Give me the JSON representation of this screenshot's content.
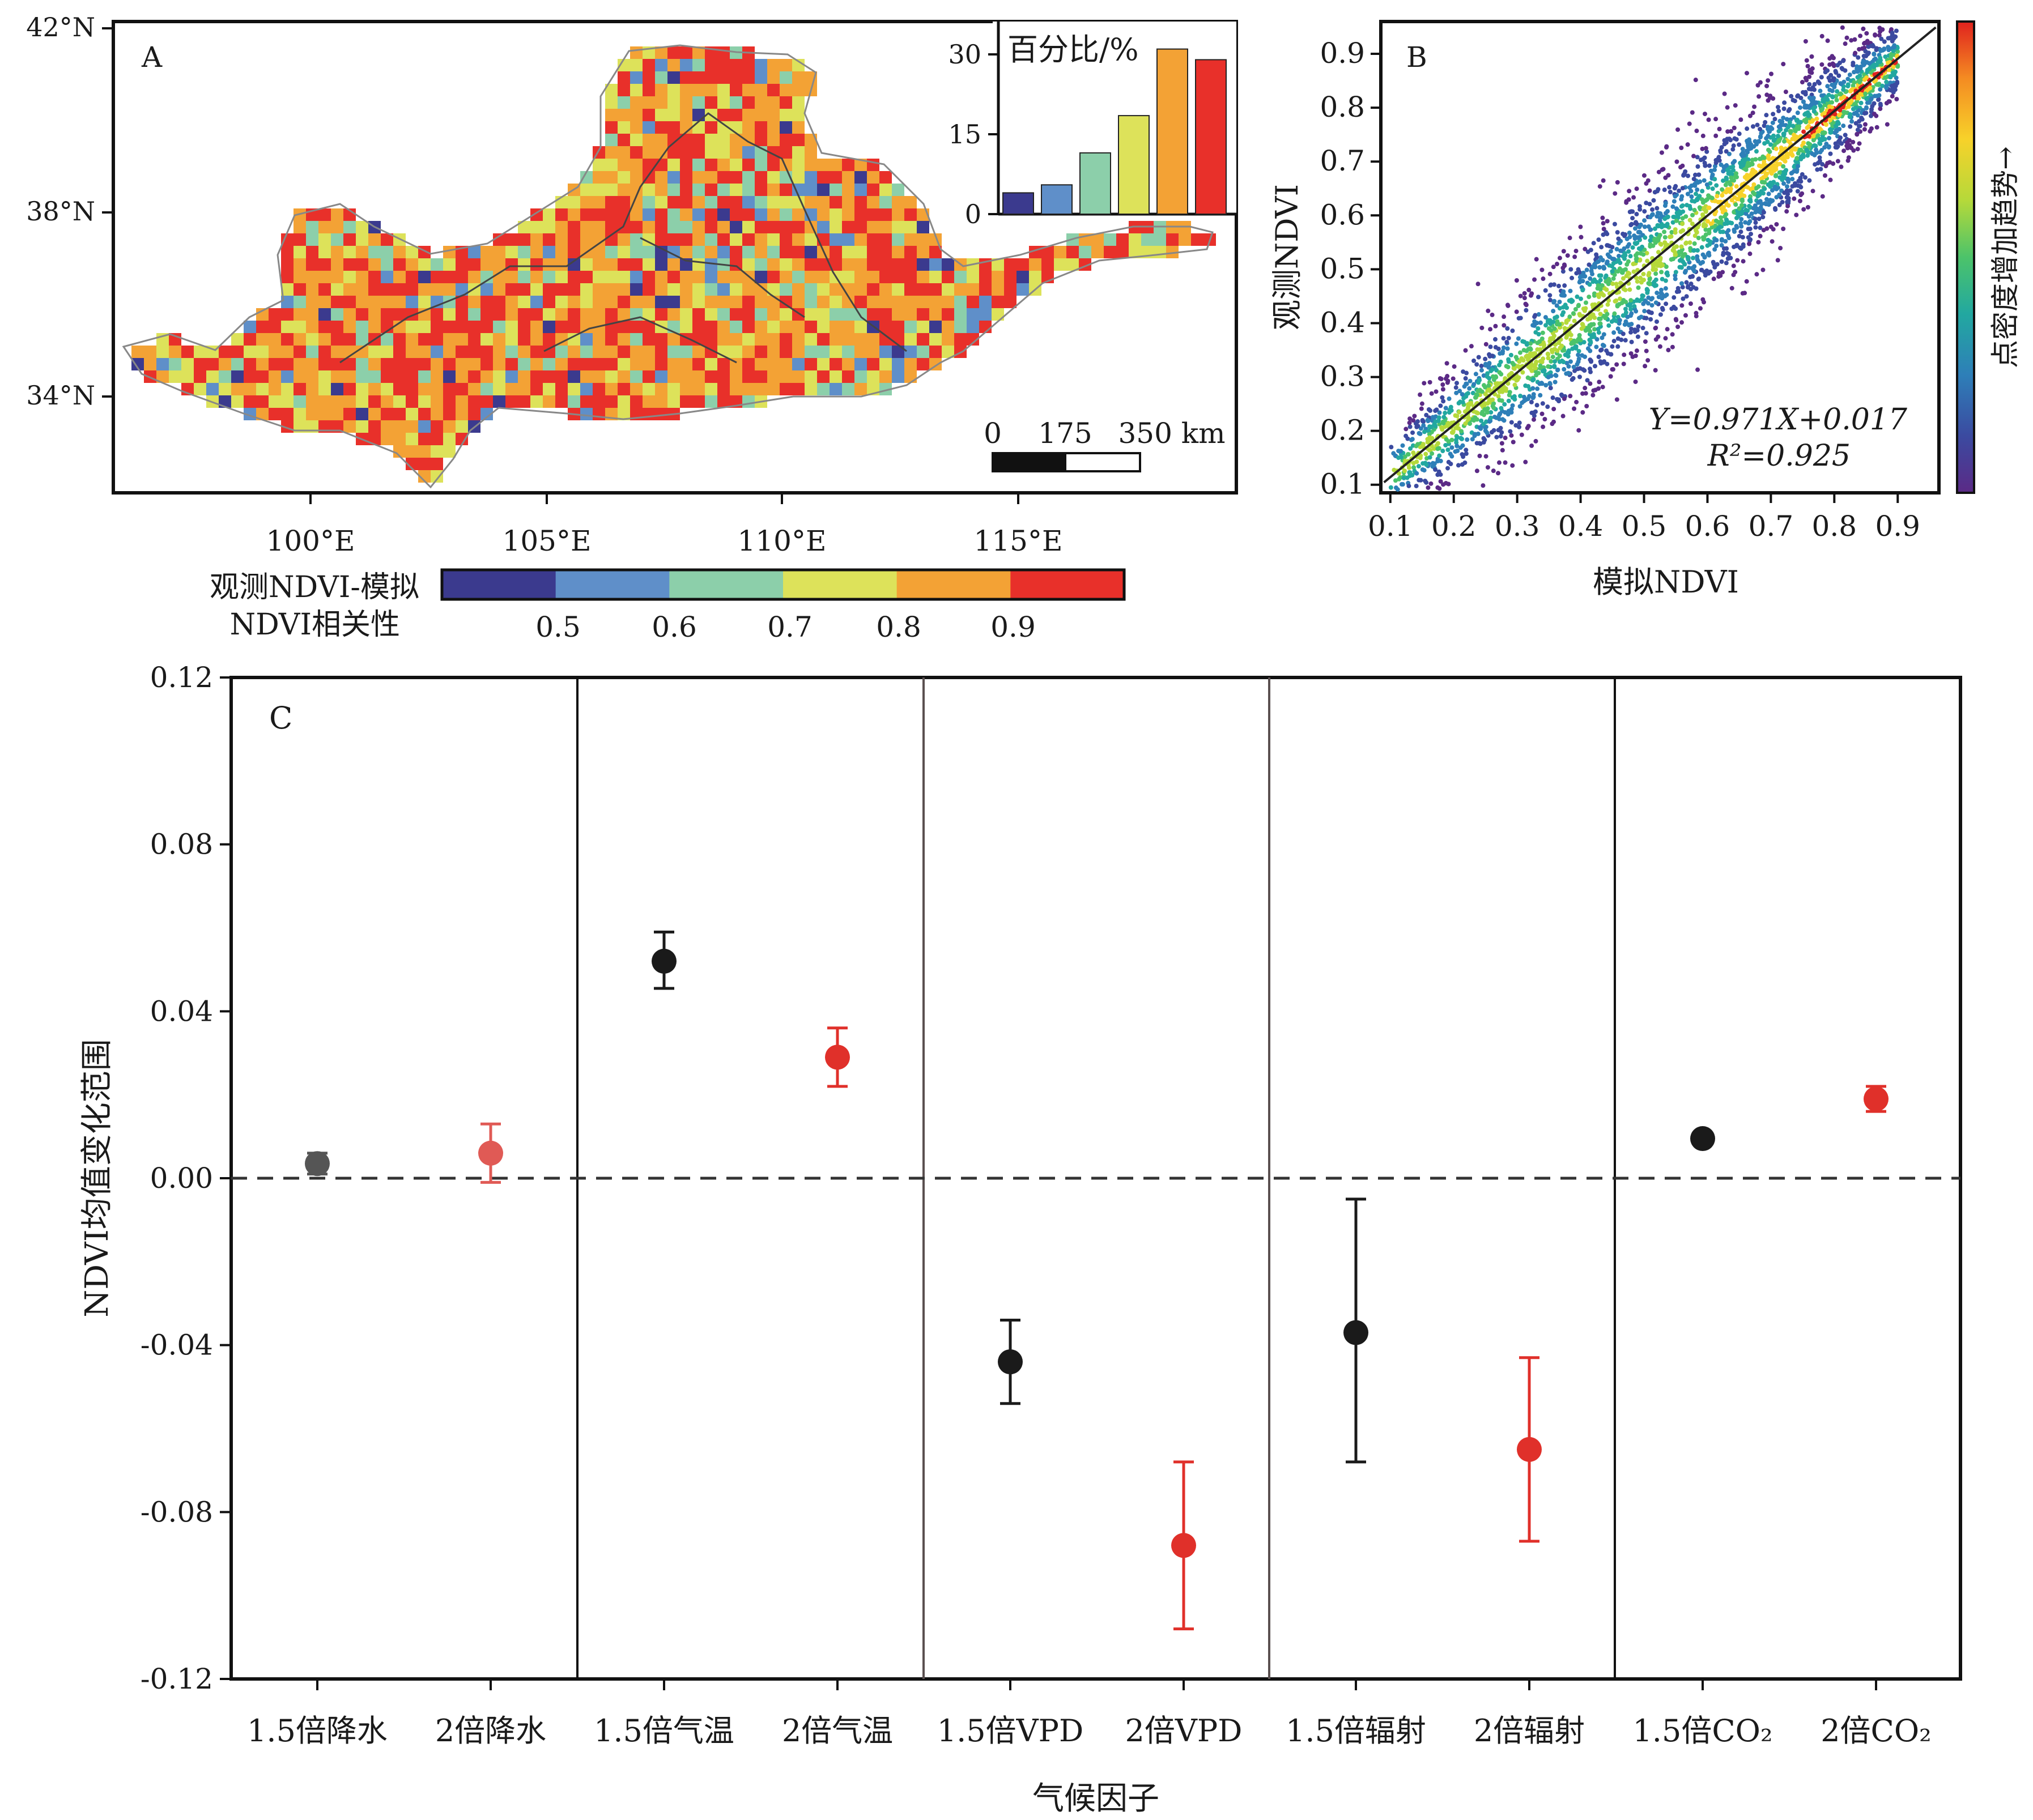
{
  "panel_a": {
    "label": "A",
    "lat_ticks": [
      "42°N",
      "38°N",
      "34°N"
    ],
    "lon_ticks": [
      "100°E",
      "105°E",
      "110°E",
      "115°E"
    ],
    "scalebar": {
      "labels": [
        "0",
        "175",
        "350 km"
      ]
    },
    "legend": {
      "title_line1": "观测NDVI-模拟",
      "title_line2": "NDVI相关性",
      "colors": [
        "#3b3a8e",
        "#5f8fc9",
        "#8ccfaa",
        "#dde25a",
        "#f3a235",
        "#e8302a"
      ],
      "tick_labels": [
        "0.5",
        "0.6",
        "0.7",
        "0.8",
        "0.9"
      ]
    },
    "inset_chart": {
      "type": "bar",
      "ylabel": "百分比/%",
      "yticks": [
        "30",
        "15",
        "0"
      ],
      "ylim": [
        0,
        35
      ],
      "values": [
        4,
        5.5,
        11.5,
        18.5,
        31,
        29
      ],
      "colors": [
        "#3b3a8e",
        "#5f8fc9",
        "#8ccfaa",
        "#dde25a",
        "#f3a235",
        "#e8302a"
      ]
    }
  },
  "panel_b": {
    "label": "B",
    "xlabel": "模拟NDVI",
    "ylabel": "观测NDVI",
    "ticks": [
      "0.1",
      "0.2",
      "0.3",
      "0.4",
      "0.5",
      "0.6",
      "0.7",
      "0.8",
      "0.9"
    ],
    "equation": "Y=0.971X+0.017",
    "r2": "R²=0.925",
    "colorbar_label": "点密度增加趋势→",
    "colorbar_colors": [
      "#5b2a86",
      "#3b4aa0",
      "#2e7fb8",
      "#22a8a0",
      "#4cc36a",
      "#b5d93a",
      "#f7d22a",
      "#f48b22",
      "#e0221e"
    ]
  },
  "chart_data": {
    "type": "scatter",
    "label": "C",
    "xlabel": "气候因子",
    "ylabel": "NDVI均值变化范围",
    "ylim": [
      -0.12,
      0.12
    ],
    "yticks": [
      "0.12",
      "0.08",
      "0.04",
      "0.00",
      "-0.04",
      "-0.08",
      "-0.12"
    ],
    "categories": [
      "1.5倍降水",
      "2倍降水",
      "1.5倍气温",
      "2倍气温",
      "1.5倍VPD",
      "2倍VPD",
      "1.5倍辐射",
      "2倍辐射",
      "1.5倍CO₂",
      "2倍CO₂"
    ],
    "series": [
      {
        "values": [
          0.0035,
          0.006,
          0.052,
          0.029,
          -0.044,
          -0.088,
          -0.037,
          -0.065,
          0.0095,
          0.019
        ],
        "err_low": [
          0.001,
          -0.001,
          0.0455,
          0.022,
          -0.054,
          -0.108,
          -0.068,
          -0.087,
          0.0095,
          0.016
        ],
        "err_high": [
          0.006,
          0.013,
          0.059,
          0.036,
          -0.034,
          -0.068,
          -0.005,
          -0.043,
          0.0095,
          0.022
        ],
        "colors": [
          "#555555",
          "#e05a55",
          "#1a1a1a",
          "#e0302a",
          "#1a1a1a",
          "#e0302a",
          "#1a1a1a",
          "#e0302a",
          "#1a1a1a",
          "#e0302a"
        ]
      }
    ],
    "reference_line": 0.0
  }
}
